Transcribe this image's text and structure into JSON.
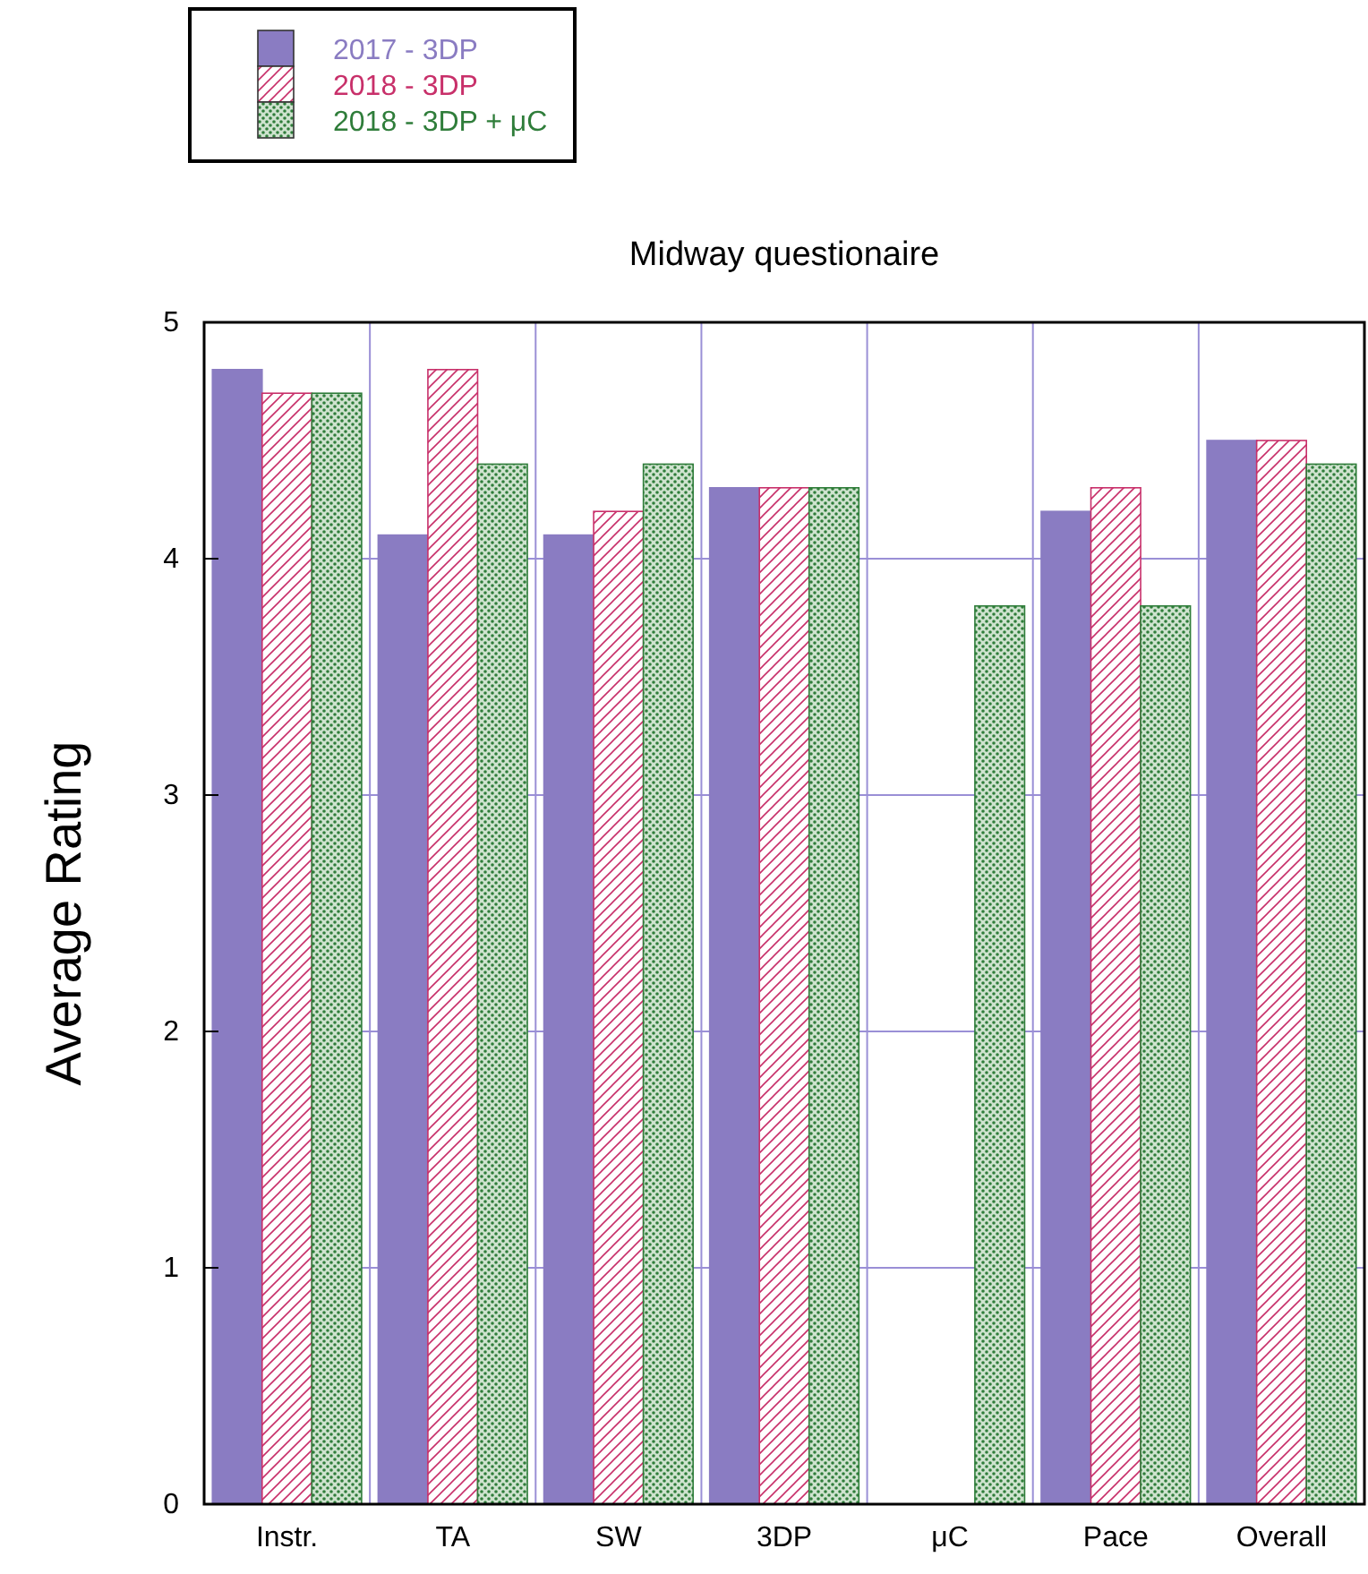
{
  "chart_data": {
    "type": "bar",
    "title": "Midway questionaire",
    "ylabel": "Average Rating",
    "categories": [
      "Instr.",
      "TA",
      "SW",
      "3DP",
      "μC",
      "Pace",
      "Overall"
    ],
    "series": [
      {
        "name": "2017 - 3DP",
        "color": "#8a7cc2",
        "values": [
          4.8,
          4.1,
          4.1,
          4.3,
          null,
          4.2,
          4.5
        ]
      },
      {
        "name": "2018 - 3DP",
        "color": "#c8306a",
        "values": [
          4.7,
          4.8,
          4.2,
          4.3,
          null,
          4.3,
          4.5
        ]
      },
      {
        "name": "2018 - 3DP + μC",
        "color": "#2f7d3a",
        "values": [
          4.7,
          4.4,
          4.4,
          4.3,
          3.8,
          3.8,
          4.4
        ]
      }
    ],
    "ylim": [
      0,
      5
    ],
    "yticks": [
      0,
      1,
      2,
      3,
      4,
      5
    ],
    "grid": true,
    "legend": "top left"
  }
}
